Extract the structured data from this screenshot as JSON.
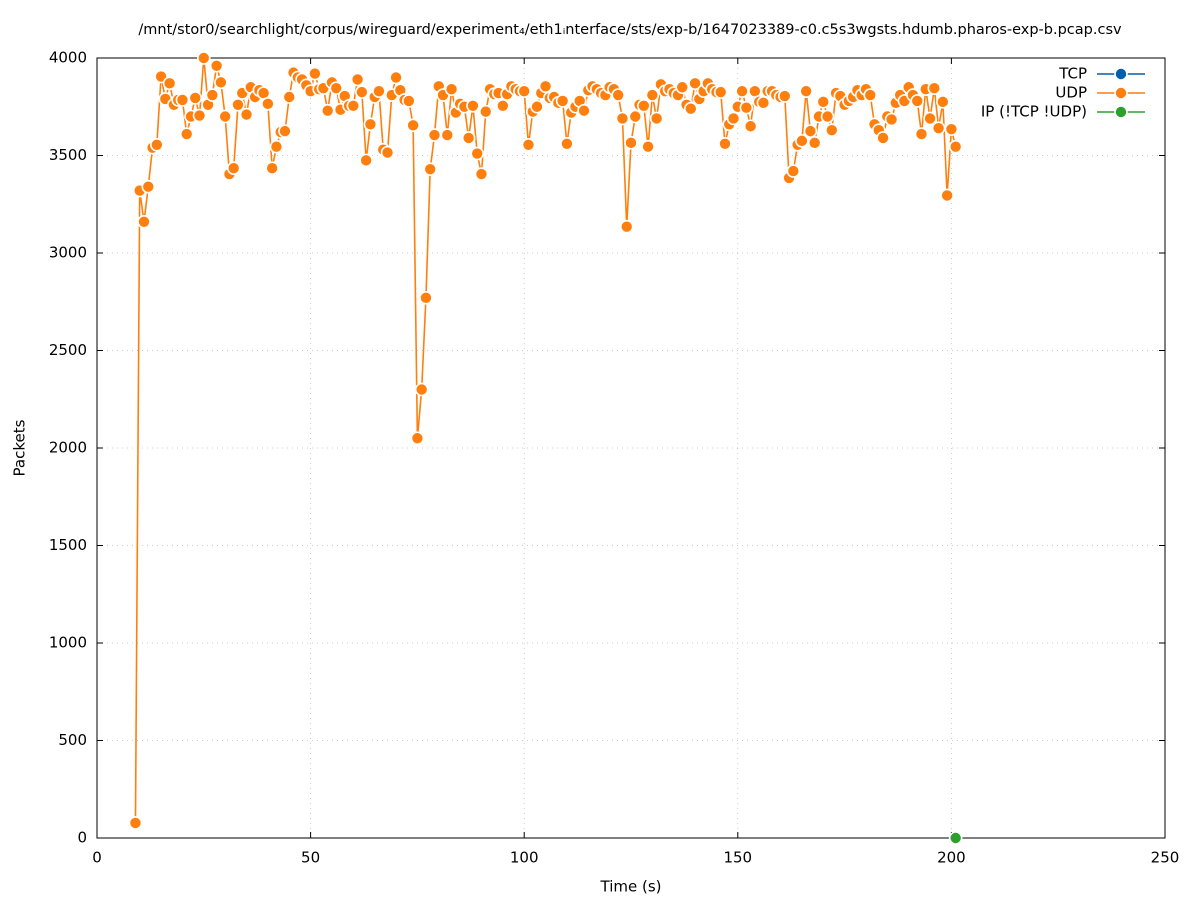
{
  "chart_data": {
    "type": "line",
    "title": "/mnt/stor0/searchlight/corpus/wireguard/experiment₄/eth1ᵢnterface/sts/exp-b/1647023389-c0.c5s3wgsts.hdumb.pharos-exp-b.pcap.csv",
    "x_label": "Time (s)",
    "y_label": "Packets",
    "xlim": [
      0,
      250
    ],
    "xticks": [
      0,
      50,
      100,
      150,
      200,
      250
    ],
    "ylim": [
      0,
      4000
    ],
    "yticks": [
      0,
      500,
      1000,
      1500,
      2000,
      2500,
      3000,
      3500,
      4000
    ],
    "grid": true,
    "legend": "top-right",
    "series": [
      {
        "name": "TCP",
        "color": "#0060ad",
        "x": [],
        "values": []
      },
      {
        "name": "UDP",
        "color": "#ff7f0e",
        "x": [
          9,
          10,
          11,
          12,
          13,
          14,
          15,
          16,
          17,
          18,
          19,
          20,
          21,
          22,
          23,
          24,
          25,
          26,
          27,
          28,
          29,
          30,
          31,
          32,
          33,
          34,
          35,
          36,
          37,
          38,
          39,
          40,
          41,
          42,
          43,
          44,
          45,
          46,
          47,
          48,
          49,
          50,
          51,
          52,
          53,
          54,
          55,
          56,
          57,
          58,
          59,
          60,
          61,
          62,
          63,
          64,
          65,
          66,
          67,
          68,
          69,
          70,
          71,
          72,
          73,
          74,
          75,
          76,
          77,
          78,
          79,
          80,
          81,
          82,
          83,
          84,
          85,
          86,
          87,
          88,
          89,
          90,
          91,
          92,
          93,
          94,
          95,
          96,
          97,
          98,
          99,
          100,
          101,
          102,
          103,
          104,
          105,
          106,
          107,
          108,
          109,
          110,
          111,
          112,
          113,
          114,
          115,
          116,
          117,
          118,
          119,
          120,
          121,
          122,
          123,
          124,
          125,
          126,
          127,
          128,
          129,
          130,
          131,
          132,
          133,
          134,
          135,
          136,
          137,
          138,
          139,
          140,
          141,
          142,
          143,
          144,
          145,
          146,
          147,
          148,
          149,
          150,
          151,
          152,
          153,
          154,
          155,
          156,
          157,
          158,
          159,
          160,
          161,
          162,
          163,
          164,
          165,
          166,
          167,
          168,
          169,
          170,
          171,
          172,
          173,
          174,
          175,
          176,
          177,
          178,
          179,
          180,
          181,
          182,
          183,
          184,
          185,
          186,
          187,
          188,
          189,
          190,
          191,
          192,
          193,
          194,
          195,
          196,
          197,
          198,
          199,
          200,
          201
        ],
        "values": [
          77,
          3320,
          3160,
          3340,
          3540,
          3555,
          3905,
          3790,
          3870,
          3760,
          3785,
          3785,
          3610,
          3700,
          3795,
          3705,
          4000,
          3760,
          3810,
          3960,
          3875,
          3700,
          3405,
          3435,
          3760,
          3820,
          3710,
          3850,
          3800,
          3835,
          3820,
          3765,
          3435,
          3545,
          3620,
          3625,
          3800,
          3925,
          3900,
          3890,
          3860,
          3830,
          3920,
          3840,
          3845,
          3730,
          3875,
          3845,
          3735,
          3805,
          3755,
          3755,
          3890,
          3825,
          3475,
          3660,
          3800,
          3830,
          3530,
          3515,
          3810,
          3900,
          3835,
          3785,
          3780,
          3655,
          2050,
          2300,
          2770,
          3430,
          3605,
          3855,
          3810,
          3605,
          3840,
          3720,
          3765,
          3750,
          3590,
          3755,
          3510,
          3405,
          3725,
          3840,
          3815,
          3820,
          3755,
          3815,
          3855,
          3840,
          3830,
          3830,
          3555,
          3725,
          3750,
          3820,
          3855,
          3795,
          3800,
          3770,
          3780,
          3560,
          3720,
          3750,
          3780,
          3730,
          3835,
          3855,
          3840,
          3820,
          3810,
          3850,
          3840,
          3810,
          3690,
          3135,
          3565,
          3700,
          3760,
          3755,
          3545,
          3810,
          3690,
          3865,
          3830,
          3840,
          3820,
          3810,
          3850,
          3760,
          3740,
          3870,
          3790,
          3830,
          3870,
          3840,
          3825,
          3825,
          3560,
          3660,
          3690,
          3750,
          3830,
          3745,
          3650,
          3830,
          3775,
          3770,
          3830,
          3830,
          3810,
          3800,
          3805,
          3385,
          3420,
          3555,
          3575,
          3830,
          3625,
          3565,
          3700,
          3775,
          3700,
          3630,
          3820,
          3805,
          3760,
          3780,
          3800,
          3835,
          3810,
          3840,
          3810,
          3660,
          3630,
          3590,
          3700,
          3685,
          3770,
          3810,
          3780,
          3850,
          3810,
          3780,
          3610,
          3840,
          3690,
          3845,
          3640,
          3775,
          3295,
          3635,
          3545
        ]
      },
      {
        "name": "IP (!TCP  !UDP)",
        "color": "#2ca02c",
        "x": [
          201
        ],
        "values": [
          0
        ]
      }
    ]
  }
}
